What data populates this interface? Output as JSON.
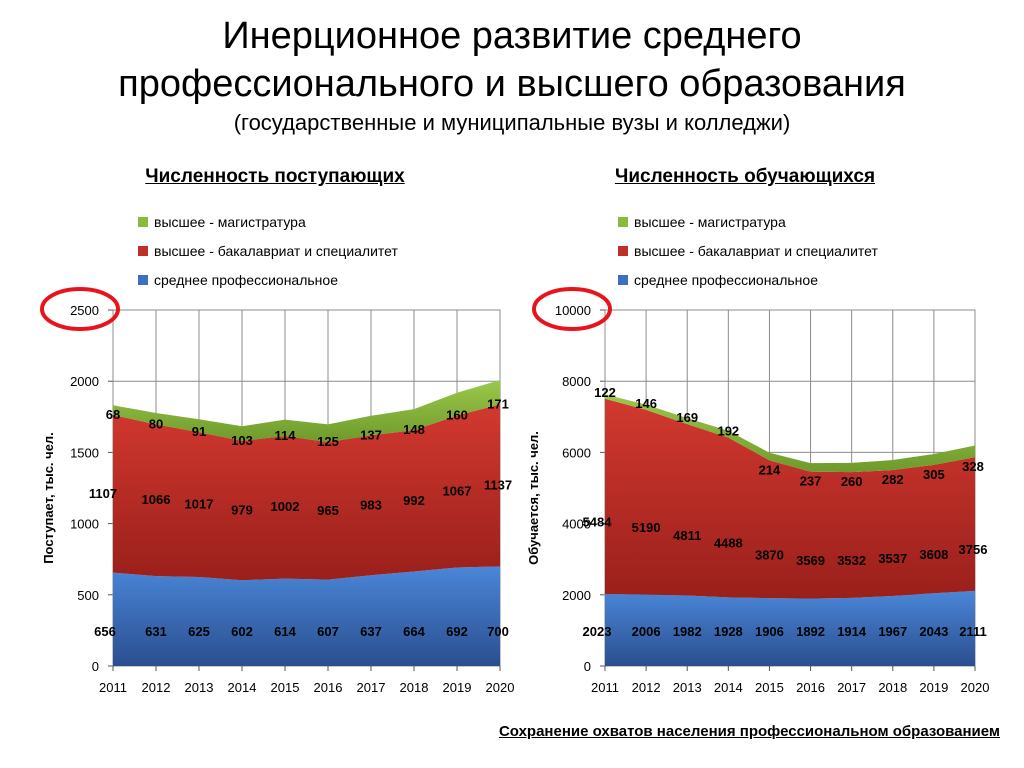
{
  "header": {
    "title_line1": "Инерционное развитие среднего",
    "title_line2": "профессионального и высшего образования",
    "subtitle": "(государственные и муниципальные вузы и колледжи)"
  },
  "footer": {
    "note": "Сохранение охватов населения профессиональном образованием"
  },
  "colors": {
    "green": "#8BB83F",
    "red": "#C0302B",
    "blue": "#3A6FC2",
    "highlight_circle": "#E8141C"
  },
  "chart_data": [
    {
      "type": "area",
      "stacked": true,
      "title": "Численность поступающих",
      "xlabel": "",
      "ylabel": "Поступает, тыс. чел.",
      "ylim": [
        0,
        2500
      ],
      "yticks": [
        0,
        500,
        1000,
        1500,
        2000,
        2500
      ],
      "grid": true,
      "legend_position": "top",
      "x": [
        "2011",
        "2012",
        "2013",
        "2014",
        "2015",
        "2016",
        "2017",
        "2018",
        "2019",
        "2020"
      ],
      "series": [
        {
          "name": "среднее профессиональное",
          "values": [
            656,
            631,
            625,
            602,
            614,
            607,
            637,
            664,
            692,
            700
          ]
        },
        {
          "name": "высшее - бакалавриат и специалитет",
          "values": [
            1107,
            1066,
            1017,
            979,
            1002,
            965,
            983,
            992,
            1067,
            1137
          ]
        },
        {
          "name": "высшее - магистратура",
          "values": [
            68,
            80,
            91,
            103,
            114,
            125,
            137,
            148,
            160,
            171
          ]
        }
      ]
    },
    {
      "type": "area",
      "stacked": true,
      "title": "Численность обучающихся",
      "xlabel": "",
      "ylabel": "Обучается, тыс. чел.",
      "ylim": [
        0,
        10000
      ],
      "yticks": [
        0,
        2000,
        4000,
        6000,
        8000,
        10000
      ],
      "grid": true,
      "legend_position": "top",
      "x": [
        "2011",
        "2012",
        "2013",
        "2014",
        "2015",
        "2016",
        "2017",
        "2018",
        "2019",
        "2020"
      ],
      "series": [
        {
          "name": "среднее профессиональное",
          "values": [
            2023,
            2006,
            1982,
            1928,
            1906,
            1892,
            1914,
            1967,
            2043,
            2111
          ]
        },
        {
          "name": "высшее - бакалавриат и специалитет",
          "values": [
            5484,
            5190,
            4811,
            4488,
            3870,
            3569,
            3532,
            3537,
            3608,
            3756
          ]
        },
        {
          "name": "высшее - магистратура",
          "values": [
            122,
            146,
            169,
            192,
            214,
            237,
            260,
            282,
            305,
            328
          ]
        }
      ]
    }
  ]
}
